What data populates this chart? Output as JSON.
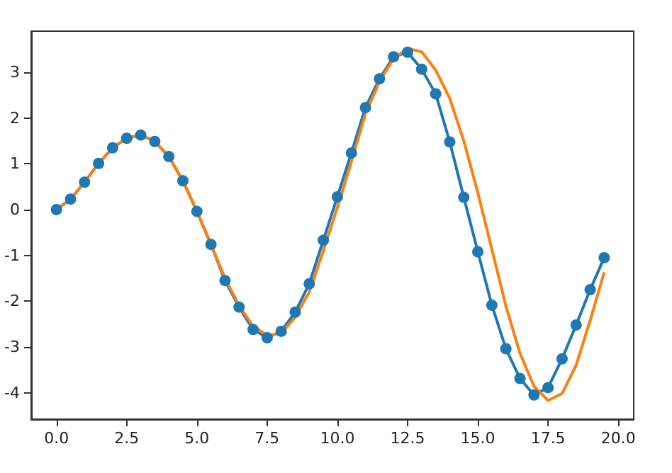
{
  "chart_data": {
    "type": "line",
    "xlim": [
      -0.9,
      20.55
    ],
    "ylim": [
      -4.58,
      3.9
    ],
    "xticks": [
      {
        "value": 0,
        "label": "0.0"
      },
      {
        "value": 2.5,
        "label": "2.5"
      },
      {
        "value": 5,
        "label": "5.0"
      },
      {
        "value": 7.5,
        "label": "7.5"
      },
      {
        "value": 10,
        "label": "10.0"
      },
      {
        "value": 12.5,
        "label": "12.5"
      },
      {
        "value": 15,
        "label": "15.0"
      },
      {
        "value": 17.5,
        "label": "17.5"
      },
      {
        "value": 20,
        "label": "20.0"
      }
    ],
    "yticks": [
      -4,
      -3,
      -2,
      -1,
      0,
      1,
      2,
      3
    ],
    "grid": false,
    "series": [
      {
        "color": "#1f77b4",
        "marker": "circle",
        "x": [
          0,
          0.5,
          1,
          1.5,
          2,
          2.5,
          3,
          3.5,
          4,
          4.5,
          5,
          5.5,
          6,
          6.5,
          7,
          7.5,
          8,
          8.5,
          9,
          9.5,
          10,
          10.5,
          11,
          11.5,
          12,
          12.5,
          13,
          13.5,
          14,
          14.5,
          15,
          15.5,
          16,
          16.5,
          17,
          17.5,
          18,
          18.5,
          19,
          19.5
        ],
        "values": [
          0,
          0.23,
          0.6,
          1.01,
          1.35,
          1.56,
          1.63,
          1.49,
          1.16,
          0.63,
          -0.04,
          -0.76,
          -1.55,
          -2.13,
          -2.62,
          -2.8,
          -2.66,
          -2.24,
          -1.62,
          -0.67,
          0.28,
          1.24,
          2.23,
          2.86,
          3.34,
          3.44,
          3.07,
          2.53,
          1.48,
          0.27,
          -0.92,
          -2.09,
          -3.04,
          -3.69,
          -4.05,
          -3.89,
          -3.26,
          -2.52,
          -1.75,
          -1.05
        ]
      },
      {
        "color": "#ff7f0e",
        "marker": "none",
        "x": [
          0,
          0.5,
          1,
          1.5,
          2,
          2.5,
          3,
          3.5,
          4,
          4.5,
          5,
          5.5,
          6,
          6.5,
          7,
          7.5,
          8,
          8.5,
          9,
          9.5,
          10,
          10.5,
          11,
          11.5,
          12,
          12.5,
          13,
          13.5,
          14,
          14.5,
          15,
          15.5,
          16,
          16.5,
          17,
          17.5,
          18,
          18.5,
          19,
          19.5
        ],
        "values": [
          0,
          0.23,
          0.6,
          1.01,
          1.35,
          1.56,
          1.63,
          1.49,
          1.16,
          0.63,
          -0.04,
          -0.76,
          -1.5,
          -2.1,
          -2.55,
          -2.75,
          -2.7,
          -2.35,
          -1.8,
          -0.9,
          0.05,
          1.05,
          2.1,
          2.8,
          3.3,
          3.52,
          3.45,
          3.05,
          2.43,
          1.5,
          0.37,
          -0.87,
          -2.11,
          -3.14,
          -3.86,
          -4.17,
          -4.02,
          -3.4,
          -2.42,
          -1.37
        ]
      }
    ]
  }
}
